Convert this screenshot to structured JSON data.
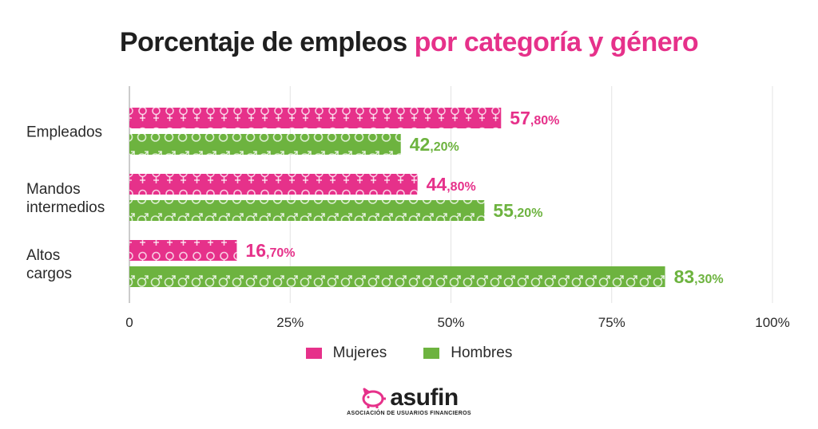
{
  "title": {
    "part1": "Porcentaje de empleos ",
    "part2": "por categoría y género"
  },
  "colors": {
    "mujeres": "#e6318a",
    "hombres": "#6db33f",
    "accent": "#e6318a"
  },
  "chart_data": {
    "type": "bar",
    "orientation": "horizontal",
    "categories": [
      [
        "Empleados"
      ],
      [
        "Mandos",
        "intermedios"
      ],
      [
        "Altos",
        "cargos"
      ]
    ],
    "series": [
      {
        "name": "Mujeres",
        "values": [
          57.8,
          44.8,
          16.7
        ],
        "labels": [
          [
            "57",
            ",80%"
          ],
          [
            "44",
            ",80%"
          ],
          [
            "16",
            ",70%"
          ]
        ],
        "color": "#e6318a",
        "icon": "female-symbol-icon"
      },
      {
        "name": "Hombres",
        "values": [
          42.2,
          55.2,
          83.3
        ],
        "labels": [
          [
            "42",
            ",20%"
          ],
          [
            "55",
            ",20%"
          ],
          [
            "83",
            ",30%"
          ]
        ],
        "color": "#6db33f",
        "icon": "male-symbol-icon"
      }
    ],
    "xlim": [
      0,
      100
    ],
    "ticks": [
      "0",
      "25%",
      "50%",
      "75%",
      "100%"
    ],
    "grid": true,
    "legend": "bottom"
  },
  "legend": {
    "items": [
      {
        "label": "Mujeres"
      },
      {
        "label": "Hombres"
      }
    ]
  },
  "logo": {
    "name": "asufin",
    "tagline": "ASOCIACIÓN DE USUARIOS FINANCIEROS"
  }
}
